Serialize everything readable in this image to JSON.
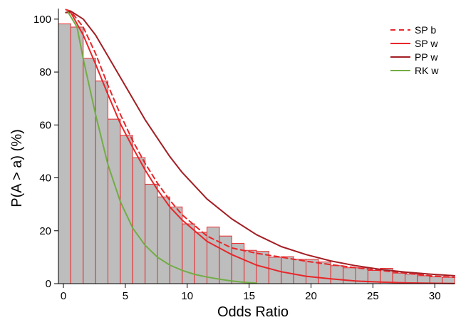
{
  "chart_data": {
    "type": "bar",
    "title": "",
    "xlabel": "Odds Ratio",
    "ylabel": "P(A > a) (%)",
    "xlim": [
      0,
      32
    ],
    "ylim": [
      0,
      104
    ],
    "xticks": [
      0,
      5,
      10,
      15,
      20,
      25,
      30
    ],
    "yticks": [
      0,
      20,
      40,
      60,
      80,
      100
    ],
    "grid": false,
    "legend_position": "top-right",
    "histogram": {
      "bin_width": 1,
      "bar_fill": "#bdbdbd",
      "bar_edge": "#e8262a",
      "x_start": [
        0,
        1,
        2,
        3,
        4,
        5,
        6,
        7,
        8,
        9,
        10,
        11,
        12,
        13,
        14,
        15,
        16,
        17,
        18,
        19,
        20,
        21,
        22,
        23,
        24,
        25,
        26,
        27,
        28,
        29,
        30,
        31
      ],
      "values": [
        98.2,
        97.0,
        85.2,
        76.6,
        62.2,
        56.0,
        47.6,
        37.6,
        32.8,
        29.0,
        22.6,
        19.4,
        21.4,
        18.0,
        15.2,
        12.6,
        12.2,
        10.0,
        10.2,
        9.2,
        9.2,
        8.2,
        6.8,
        6.0,
        6.0,
        5.0,
        5.8,
        4.0,
        3.6,
        3.0,
        2.6,
        2.4
      ]
    },
    "series": [
      {
        "name": "SP b",
        "color": "#e8262a",
        "dash": "dashed",
        "x": [
          0.6,
          1,
          2,
          3,
          4,
          5,
          6,
          7,
          8,
          9,
          10,
          12,
          14,
          16,
          18,
          20,
          22,
          24,
          26,
          28,
          30,
          32
        ],
        "y": [
          103.6,
          103,
          97,
          87,
          75,
          64,
          54,
          45.5,
          38,
          31.5,
          26,
          18,
          13.5,
          11.5,
          10,
          8.5,
          7.2,
          6,
          5,
          4,
          3,
          2.4
        ]
      },
      {
        "name": "SP w",
        "color": "#e8262a",
        "dash": "solid",
        "x": [
          0.6,
          1,
          2,
          3,
          4,
          5,
          6,
          7,
          8,
          9,
          10,
          12,
          14,
          16,
          18,
          20,
          22,
          24,
          26,
          28,
          30,
          32
        ],
        "y": [
          102.5,
          102.5,
          94,
          83,
          71.5,
          60.5,
          51.5,
          43,
          35.5,
          29,
          24,
          16,
          11,
          7,
          4.5,
          2.8,
          1.8,
          1.0,
          0.6,
          0.3,
          0.15,
          0.05
        ]
      },
      {
        "name": "PP w",
        "color": "#a31e24",
        "dash": "solid",
        "x": [
          0.6,
          1,
          2,
          3,
          4,
          5,
          6,
          7,
          8,
          9,
          10,
          12,
          14,
          16,
          18,
          20,
          22,
          24,
          26,
          28,
          30,
          32
        ],
        "y": [
          102.5,
          103,
          100,
          94,
          86,
          78,
          70,
          62,
          55,
          48,
          42,
          32,
          24.5,
          18.5,
          14,
          11,
          8.6,
          6.8,
          5.4,
          4.4,
          3.6,
          3.0
        ]
      },
      {
        "name": "RK w",
        "color": "#72ad45",
        "dash": "solid",
        "x": [
          0.8,
          1.5,
          2,
          3,
          4,
          5,
          6,
          7,
          8,
          9,
          10,
          11,
          12,
          13,
          14,
          15,
          16
        ],
        "y": [
          102.5,
          97,
          85,
          64,
          45,
          31,
          21,
          14.5,
          10,
          7,
          5,
          3.5,
          2.5,
          1.7,
          1.0,
          0.5,
          0.2
        ]
      }
    ]
  }
}
